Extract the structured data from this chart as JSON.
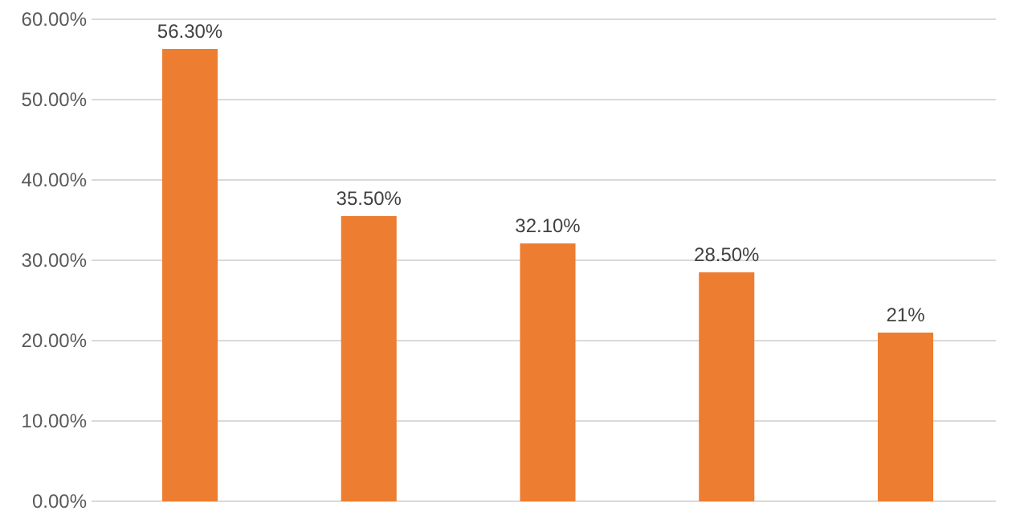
{
  "chart_data": {
    "type": "bar",
    "categories": [
      null,
      null,
      null,
      null,
      null
    ],
    "values": [
      56.3,
      35.5,
      32.1,
      28.5,
      21
    ],
    "value_labels": [
      "56.30%",
      "35.50%",
      "32.10%",
      "28.50%",
      "21%"
    ],
    "color": "#ed7d31",
    "ylim": [
      0,
      60
    ],
    "yticks": [
      {
        "value": 0,
        "label": "0.00%"
      },
      {
        "value": 10,
        "label": "10.00%"
      },
      {
        "value": 20,
        "label": "20.00%"
      },
      {
        "value": 30,
        "label": "30.00%"
      },
      {
        "value": 40,
        "label": "40.00%"
      },
      {
        "value": 50,
        "label": "50.00%"
      },
      {
        "value": 60,
        "label": "60.00%"
      }
    ],
    "grid": "y",
    "tick_labels": "y"
  }
}
